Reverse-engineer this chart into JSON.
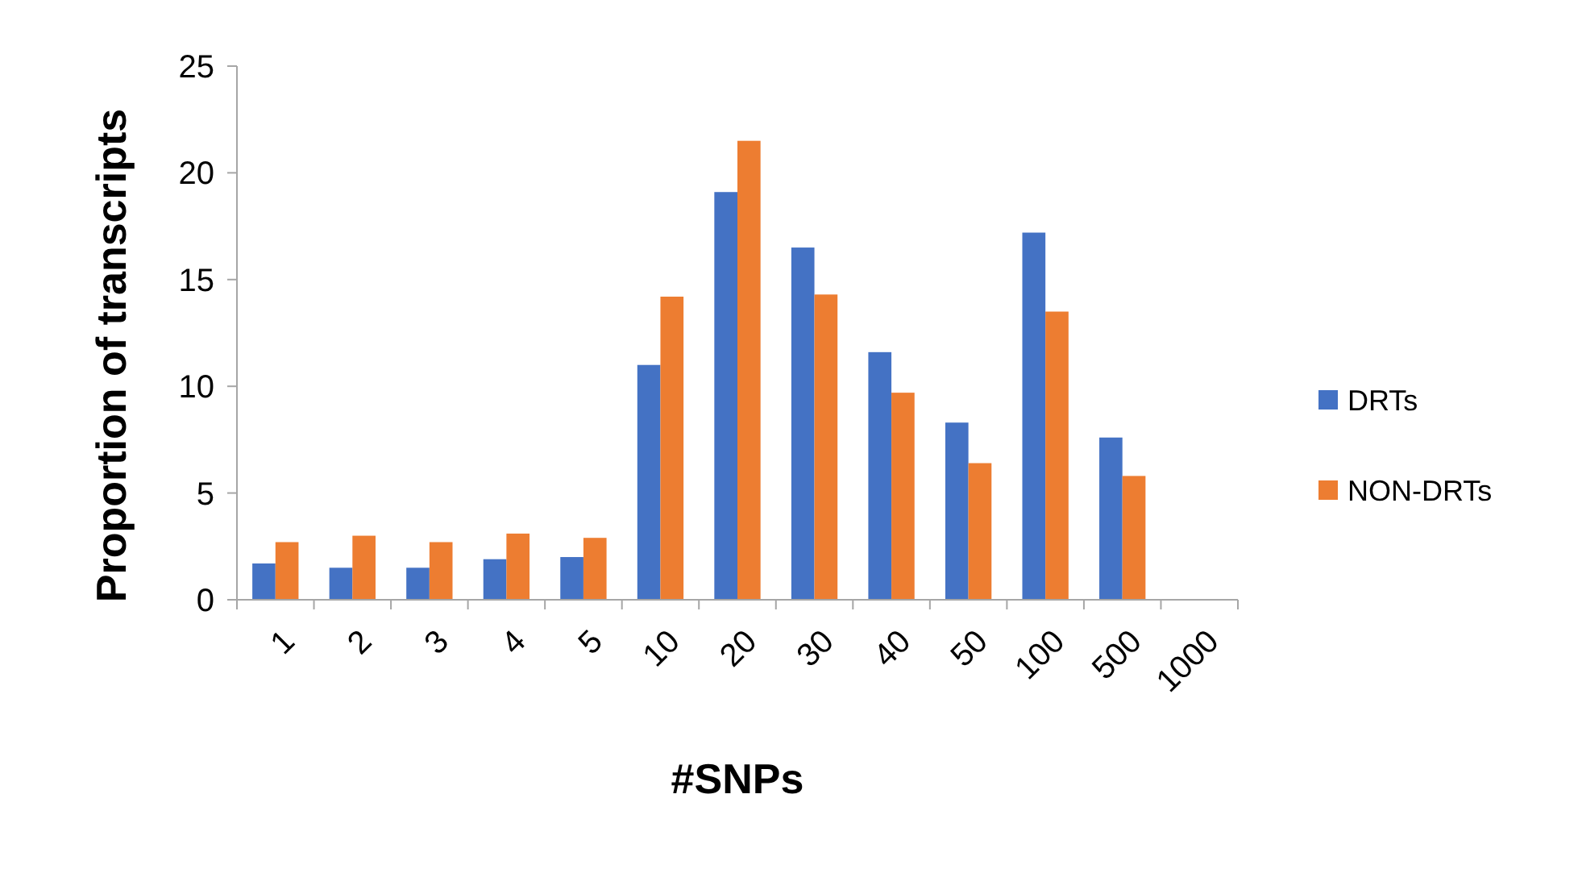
{
  "chart_data": {
    "type": "bar",
    "xlabel": "#SNPs",
    "ylabel": "Proportion of transcripts",
    "categories": [
      "1",
      "2",
      "3",
      "4",
      "5",
      "10",
      "20",
      "30",
      "40",
      "50",
      "100",
      "500",
      "1000"
    ],
    "series": [
      {
        "name": "DRTs",
        "color": "#4472c4",
        "values": [
          1.7,
          1.5,
          1.5,
          1.9,
          2.0,
          11.0,
          19.1,
          16.5,
          11.6,
          8.3,
          17.2,
          7.6,
          null
        ]
      },
      {
        "name": "NON-DRTs",
        "color": "#ed7d31",
        "values": [
          2.7,
          3.0,
          2.7,
          3.1,
          2.9,
          14.2,
          21.5,
          14.3,
          9.7,
          6.4,
          13.5,
          5.8,
          null
        ]
      }
    ],
    "ylim": [
      0,
      25
    ],
    "yticks": [
      0,
      5,
      10,
      15,
      20,
      25
    ],
    "grid": false,
    "legend": "right"
  }
}
